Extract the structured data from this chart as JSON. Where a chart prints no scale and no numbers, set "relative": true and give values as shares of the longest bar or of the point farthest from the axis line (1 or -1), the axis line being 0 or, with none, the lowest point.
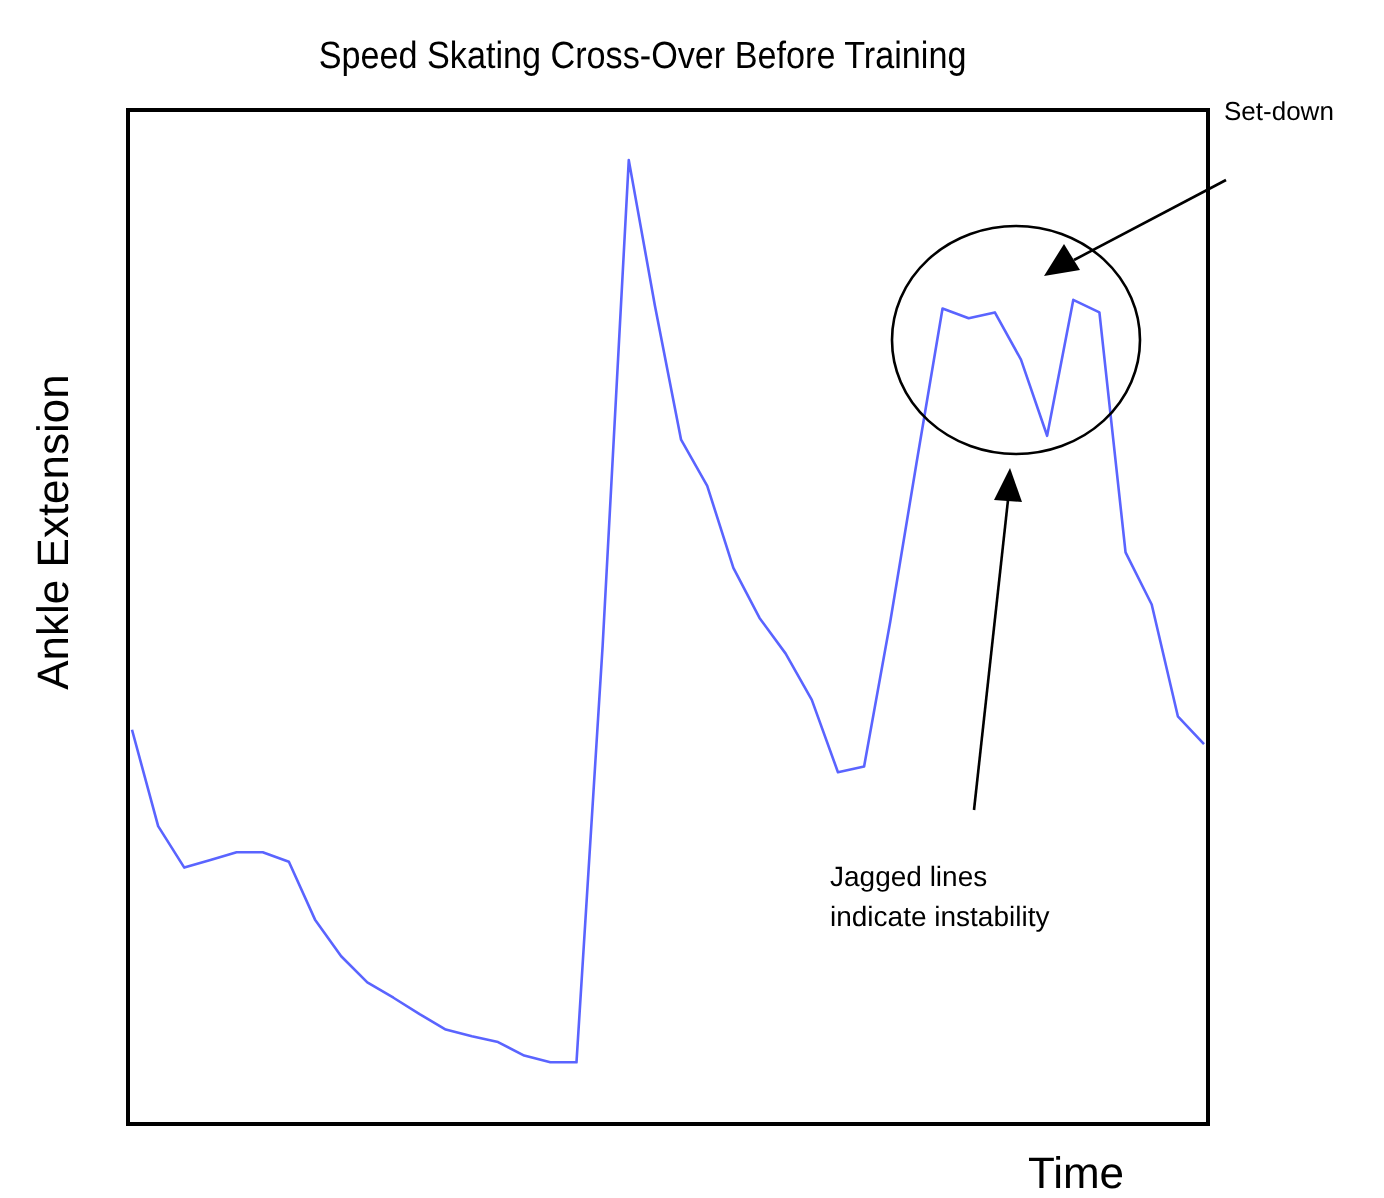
{
  "chart_data": {
    "type": "line",
    "title": "Speed Skating Cross-Over Before Training",
    "xlabel": "Time",
    "ylabel": "Ankle Extension",
    "relative": true,
    "grid": false,
    "categories": [
      null,
      null,
      null,
      null,
      null,
      null,
      null,
      null,
      null,
      null,
      null,
      null,
      null,
      null,
      null,
      null,
      null,
      null,
      null,
      null,
      null,
      null,
      null,
      null,
      null,
      null,
      null,
      null,
      null,
      null,
      null,
      null,
      null,
      null,
      null,
      null,
      null,
      null,
      null,
      null,
      null,
      null
    ],
    "series": [
      {
        "color": "#5a64ff",
        "values": [
          0.409,
          0.309,
          0.266,
          0.274,
          0.282,
          0.282,
          0.272,
          0.212,
          0.174,
          0.147,
          0.131,
          0.114,
          0.098,
          0.091,
          0.085,
          0.071,
          0.064,
          0.064,
          0.496,
          1,
          0.849,
          0.71,
          0.662,
          0.577,
          0.525,
          0.488,
          0.44,
          0.365,
          0.371,
          0.521,
          0.685,
          0.846,
          0.836,
          0.842,
          0.793,
          0.714,
          0.855,
          0.842,
          0.593,
          0.539,
          0.423,
          0.394
        ]
      }
    ],
    "annotations": [
      "Set-down",
      "Jagged lines indicate instability"
    ]
  }
}
